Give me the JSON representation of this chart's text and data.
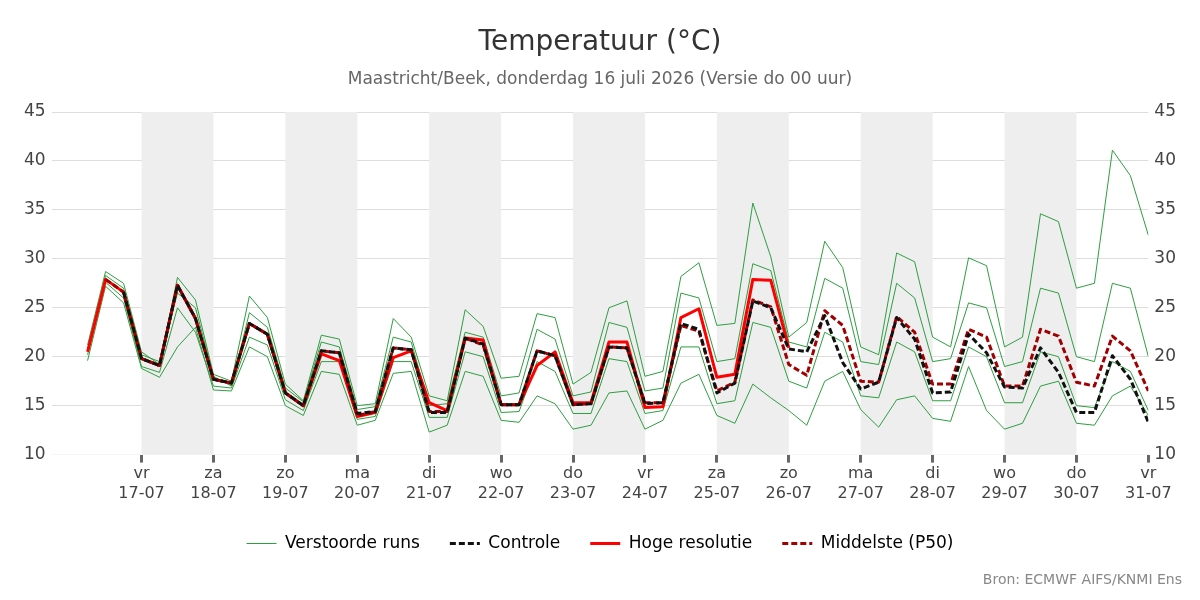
{
  "chart_data": {
    "type": "line",
    "title": "Temperatuur (°C)",
    "subtitle": "Maastricht/Beek, donderdag 16 juli 2026 (Versie do 00 uur)",
    "annotations": [
      "Bron: ECMWF AIFS/KNMI Ens"
    ],
    "x": [
      "2026-07-16T06:00",
      "2026-07-16T12:00",
      "2026-07-16T18:00",
      "2026-07-17T00:00",
      "2026-07-17T06:00",
      "2026-07-17T12:00",
      "2026-07-17T18:00",
      "2026-07-18T00:00",
      "2026-07-18T06:00",
      "2026-07-18T12:00",
      "2026-07-18T18:00",
      "2026-07-19T00:00",
      "2026-07-19T06:00",
      "2026-07-19T12:00",
      "2026-07-19T18:00",
      "2026-07-20T00:00",
      "2026-07-20T06:00",
      "2026-07-20T12:00",
      "2026-07-20T18:00",
      "2026-07-21T00:00",
      "2026-07-21T06:00",
      "2026-07-21T12:00",
      "2026-07-21T18:00",
      "2026-07-22T00:00",
      "2026-07-22T06:00",
      "2026-07-22T12:00",
      "2026-07-22T18:00",
      "2026-07-23T00:00",
      "2026-07-23T06:00",
      "2026-07-23T12:00",
      "2026-07-23T18:00",
      "2026-07-24T00:00",
      "2026-07-24T06:00",
      "2026-07-24T12:00",
      "2026-07-24T18:00",
      "2026-07-25T00:00",
      "2026-07-25T06:00",
      "2026-07-25T12:00",
      "2026-07-25T18:00",
      "2026-07-26T00:00",
      "2026-07-26T06:00",
      "2026-07-26T12:00",
      "2026-07-26T18:00",
      "2026-07-27T00:00",
      "2026-07-27T06:00",
      "2026-07-27T12:00",
      "2026-07-27T18:00",
      "2026-07-28T00:00",
      "2026-07-28T06:00",
      "2026-07-28T12:00",
      "2026-07-28T18:00",
      "2026-07-29T00:00",
      "2026-07-29T06:00",
      "2026-07-29T12:00",
      "2026-07-29T18:00",
      "2026-07-30T00:00",
      "2026-07-30T06:00",
      "2026-07-30T12:00",
      "2026-07-30T18:00",
      "2026-07-31T00:00"
    ],
    "xlim": [
      "2026-07-15T18:00",
      "2026-07-31T00:00"
    ],
    "xticks": [
      {
        "value": "2026-07-17",
        "label": "vr 17-07"
      },
      {
        "value": "2026-07-18",
        "label": "za 18-07"
      },
      {
        "value": "2026-07-19",
        "label": "zo 19-07"
      },
      {
        "value": "2026-07-20",
        "label": "ma 20-07"
      },
      {
        "value": "2026-07-21",
        "label": "di 21-07"
      },
      {
        "value": "2026-07-22",
        "label": "wo 22-07"
      },
      {
        "value": "2026-07-23",
        "label": "do 23-07"
      },
      {
        "value": "2026-07-24",
        "label": "vr 24-07"
      },
      {
        "value": "2026-07-25",
        "label": "za 25-07"
      },
      {
        "value": "2026-07-26",
        "label": "zo 26-07"
      },
      {
        "value": "2026-07-27",
        "label": "ma 27-07"
      },
      {
        "value": "2026-07-28",
        "label": "di 28-07"
      },
      {
        "value": "2026-07-29",
        "label": "wo 29-07"
      },
      {
        "value": "2026-07-30",
        "label": "do 30-07"
      },
      {
        "value": "2026-07-31",
        "label": "vr 31-07"
      }
    ],
    "ylim": [
      10,
      45
    ],
    "yticks": [
      10,
      15,
      20,
      25,
      30,
      35,
      40,
      45
    ],
    "y2lim": [
      10,
      45
    ],
    "y2ticks": [
      10,
      15,
      20,
      25,
      30,
      35,
      40,
      45
    ],
    "grid": "y",
    "legend": "bottom",
    "marker": "none",
    "bands": [
      {
        "axis": "x",
        "from": "2026-07-17",
        "to": "2026-07-18",
        "color": "#eeeeee"
      },
      {
        "axis": "x",
        "from": "2026-07-19",
        "to": "2026-07-20",
        "color": "#eeeeee"
      },
      {
        "axis": "x",
        "from": "2026-07-21",
        "to": "2026-07-22",
        "color": "#eeeeee"
      },
      {
        "axis": "x",
        "from": "2026-07-23",
        "to": "2026-07-24",
        "color": "#eeeeee"
      },
      {
        "axis": "x",
        "from": "2026-07-25",
        "to": "2026-07-26",
        "color": "#eeeeee"
      },
      {
        "axis": "x",
        "from": "2026-07-27",
        "to": "2026-07-28",
        "color": "#eeeeee"
      },
      {
        "axis": "x",
        "from": "2026-07-29",
        "to": "2026-07-30",
        "color": "#eeeeee"
      }
    ],
    "series": [
      {
        "name": "Verstoorde runs",
        "color": "#2e9e40",
        "line_style": "solid",
        "values": [
          21.2,
          28.7,
          27.5,
          20.5,
          19.2,
          28.1,
          25.8,
          18.2,
          17.5,
          26.2,
          24.0,
          17.2,
          15.5,
          22.2,
          21.8,
          15.0,
          15.2,
          23.9,
          22.0,
          16.0,
          15.5,
          24.8,
          23.1,
          17.8,
          18.0,
          24.4,
          24.0,
          17.2,
          18.4,
          25.0,
          25.7,
          18.0,
          18.5,
          28.2,
          29.6,
          23.2,
          23.4,
          35.7,
          30.2,
          22.0,
          23.5,
          31.8,
          29.1,
          21.0,
          20.2,
          30.6,
          29.7,
          22.0,
          21.0,
          30.1,
          29.3,
          21.0,
          22.0,
          34.6,
          33.8,
          27.0,
          27.5,
          41.1,
          38.5,
          32.4
        ]
      },
      {
        "color": "#2e9e40",
        "line_style": "solid",
        "values": [
          19.6,
          27.2,
          25.5,
          18.8,
          17.9,
          21.0,
          23.0,
          16.6,
          16.5,
          21.0,
          20.0,
          15.0,
          14.0,
          18.5,
          18.2,
          13.0,
          13.5,
          18.3,
          18.5,
          12.3,
          13.0,
          18.5,
          18.0,
          13.5,
          13.3,
          16.0,
          15.2,
          12.6,
          13.0,
          16.3,
          16.5,
          12.6,
          13.5,
          17.3,
          18.2,
          14.0,
          13.2,
          17.2,
          15.8,
          14.5,
          13.0,
          17.5,
          18.5,
          14.6,
          12.8,
          15.6,
          16.0,
          13.7,
          13.4,
          19.0,
          14.5,
          12.6,
          13.2,
          17.0,
          17.5,
          13.2,
          13.0,
          16.0,
          17.0,
          14.0
        ]
      },
      {
        "color": "#2e9e40",
        "line_style": "solid",
        "values": [
          20.8,
          28.3,
          27.0,
          20.2,
          19.5,
          26.5,
          25.0,
          18.0,
          17.0,
          24.5,
          23.0,
          16.8,
          15.4,
          21.5,
          21.0,
          14.6,
          14.9,
          22.0,
          21.5,
          15.0,
          15.2,
          22.5,
          22.0,
          16.0,
          16.3,
          22.8,
          21.8,
          16.0,
          16.4,
          23.5,
          23.0,
          16.5,
          16.8,
          26.5,
          26.0,
          19.5,
          19.8,
          29.5,
          28.8,
          21.5,
          21.0,
          28.0,
          27.0,
          19.5,
          19.2,
          27.5,
          26.0,
          19.5,
          19.8,
          25.5,
          25.0,
          19.0,
          19.5,
          27.0,
          26.5,
          20.0,
          19.5,
          27.5,
          27.0,
          20.0
        ]
      },
      {
        "color": "#2e9e40",
        "line_style": "solid",
        "values": [
          20.2,
          27.6,
          26.0,
          19.0,
          18.4,
          25.0,
          22.5,
          17.0,
          16.8,
          22.0,
          21.2,
          15.6,
          14.5,
          19.5,
          19.5,
          13.6,
          13.9,
          19.5,
          19.5,
          13.8,
          13.8,
          20.5,
          20.0,
          14.3,
          14.4,
          19.5,
          18.5,
          14.2,
          14.2,
          19.8,
          19.5,
          14.2,
          14.5,
          21.0,
          21.0,
          15.2,
          15.5,
          23.5,
          23.0,
          17.5,
          16.8,
          22.5,
          21.5,
          16.0,
          15.8,
          21.5,
          20.5,
          15.5,
          15.5,
          21.0,
          20.0,
          15.3,
          15.3,
          20.5,
          20.0,
          15.0,
          14.8,
          19.5,
          18.5,
          14.5
        ]
      },
      {
        "name": "Controle",
        "color": "#111111",
        "line_style": "dashed",
        "values": [
          null,
          null,
          26.6,
          19.8,
          19.1,
          27.3,
          23.9,
          17.7,
          17.3,
          23.4,
          22.3,
          16.3,
          15.0,
          20.6,
          20.4,
          14.2,
          14.4,
          20.9,
          20.7,
          14.3,
          14.3,
          21.9,
          21.3,
          15.1,
          15.1,
          20.6,
          20.1,
          15.1,
          15.2,
          21.0,
          20.9,
          15.2,
          15.3,
          23.4,
          22.8,
          16.3,
          17.3,
          25.7,
          25.0,
          20.8,
          20.5,
          24.2,
          19.4,
          16.7,
          17.4,
          24.0,
          21.8,
          16.3,
          16.4,
          22.3,
          20.4,
          16.9,
          16.8,
          20.9,
          18.4,
          14.3,
          14.3,
          20.1,
          17.7,
          13.3
        ]
      },
      {
        "name": "Hoge resolutie",
        "color": "#ff0000",
        "line_style": "solid",
        "values": [
          20.5,
          27.9,
          26.6,
          19.8,
          19.1,
          27.3,
          23.9,
          17.7,
          17.3,
          23.4,
          22.3,
          16.3,
          15.0,
          20.3,
          19.6,
          13.9,
          14.3,
          19.9,
          20.6,
          15.3,
          14.5,
          21.9,
          21.7,
          15.1,
          15.1,
          19.1,
          20.5,
          15.3,
          15.3,
          21.5,
          21.5,
          14.8,
          14.9,
          24.0,
          24.9,
          17.9,
          18.2,
          27.9,
          27.8,
          20.9,
          null,
          null,
          null,
          null,
          null,
          null,
          null,
          null,
          null,
          null,
          null,
          null,
          null,
          null,
          null,
          null,
          null,
          null,
          null,
          null
        ]
      },
      {
        "name": "Middelste (P50)",
        "color": "#a00000",
        "line_style": "dashed",
        "values": [
          null,
          27.9,
          26.6,
          19.8,
          19.1,
          27.3,
          23.9,
          17.7,
          17.3,
          23.4,
          22.3,
          16.3,
          15.0,
          20.6,
          20.4,
          14.0,
          14.4,
          20.9,
          20.7,
          14.4,
          14.4,
          21.9,
          21.2,
          15.1,
          15.1,
          20.6,
          20.1,
          15.1,
          15.2,
          21.0,
          20.9,
          15.3,
          15.3,
          23.2,
          22.6,
          16.5,
          17.4,
          25.8,
          25.1,
          19.2,
          18.1,
          24.7,
          23.2,
          17.5,
          17.4,
          24.1,
          22.5,
          17.2,
          17.2,
          22.8,
          22.0,
          17.0,
          17.0,
          22.8,
          22.1,
          17.4,
          17.0,
          22.1,
          20.6,
          16.5
        ]
      }
    ]
  }
}
